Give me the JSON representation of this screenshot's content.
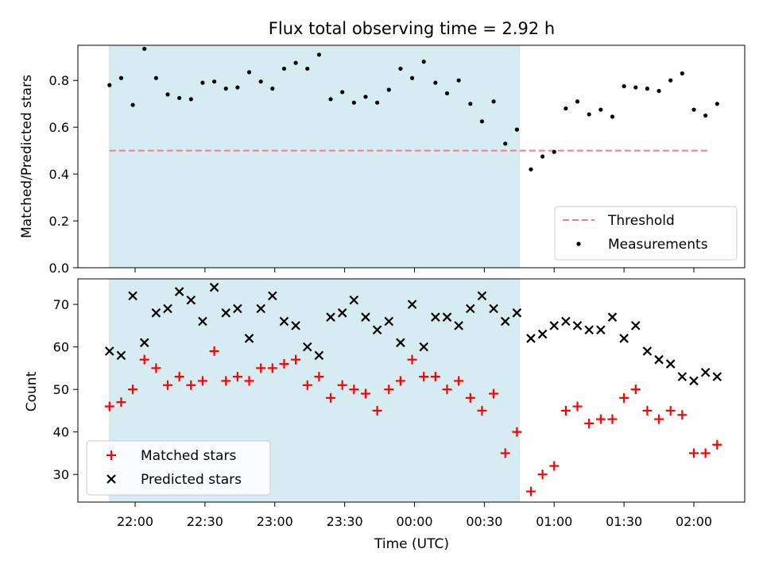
{
  "chart_data": [
    {
      "type": "scatter",
      "title": "Flux total observing time = 2.92 h",
      "ylabel": "Matched/Predicted stars",
      "xlabel": "",
      "ylim": [
        0,
        0.95
      ],
      "yticks": [
        "0.0",
        "0.2",
        "0.4",
        "0.6",
        "0.8"
      ],
      "ytick_values": [
        0,
        0.2,
        0.4,
        0.6,
        0.8
      ],
      "x_ticks": [
        "22:00",
        "22:30",
        "23:00",
        "23:30",
        "00:00",
        "00:30",
        "01:00",
        "01:30",
        "02:00"
      ],
      "shaded_span": {
        "start": "21:49",
        "end": "00:45",
        "color": "#add8e6"
      },
      "threshold": {
        "name": "Threshold",
        "value": 0.5,
        "start": "21:49",
        "end": "02:07",
        "color": "#f08080"
      },
      "legend": {
        "position": "lower-right",
        "entries": [
          "Threshold",
          "Measurements"
        ]
      },
      "series": [
        {
          "name": "Measurements",
          "color": "#000000",
          "marker": "dot",
          "x": [
            "21:49",
            "21:54",
            "21:59",
            "22:04",
            "22:09",
            "22:14",
            "22:19",
            "22:24",
            "22:29",
            "22:34",
            "22:39",
            "22:44",
            "22:49",
            "22:54",
            "22:59",
            "23:04",
            "23:09",
            "23:14",
            "23:19",
            "23:24",
            "23:29",
            "23:34",
            "23:39",
            "23:44",
            "23:49",
            "23:54",
            "23:59",
            "00:04",
            "00:09",
            "00:14",
            "00:19",
            "00:24",
            "00:29",
            "00:34",
            "00:39",
            "00:44",
            "00:50",
            "00:55",
            "01:00",
            "01:05",
            "01:10",
            "01:15",
            "01:20",
            "01:25",
            "01:30",
            "01:35",
            "01:40",
            "01:45",
            "01:50",
            "01:55",
            "02:00",
            "02:05",
            "02:10"
          ],
          "y": [
            0.78,
            0.81,
            0.695,
            0.935,
            0.81,
            0.74,
            0.725,
            0.72,
            0.79,
            0.795,
            0.765,
            0.77,
            0.835,
            0.795,
            0.765,
            0.85,
            0.875,
            0.85,
            0.91,
            0.72,
            0.75,
            0.705,
            0.73,
            0.705,
            0.76,
            0.85,
            0.81,
            0.88,
            0.79,
            0.745,
            0.8,
            0.7,
            0.625,
            0.71,
            0.53,
            0.59,
            0.42,
            0.475,
            0.495,
            0.68,
            0.71,
            0.655,
            0.675,
            0.645,
            0.775,
            0.77,
            0.765,
            0.755,
            0.8,
            0.83,
            0.675,
            0.65,
            0.7
          ]
        }
      ]
    },
    {
      "type": "scatter",
      "title": "",
      "ylabel": "Count",
      "xlabel": "Time (UTC)",
      "ylim": [
        23.5,
        76
      ],
      "yticks": [
        "30",
        "40",
        "50",
        "60",
        "70"
      ],
      "ytick_values": [
        30,
        40,
        50,
        60,
        70
      ],
      "x_ticks": [
        "22:00",
        "22:30",
        "23:00",
        "23:30",
        "00:00",
        "00:30",
        "01:00",
        "01:30",
        "02:00"
      ],
      "shaded_span": {
        "start": "21:49",
        "end": "00:45",
        "color": "#add8e6"
      },
      "legend": {
        "position": "lower-left",
        "entries": [
          "Matched stars",
          "Predicted stars"
        ]
      },
      "series": [
        {
          "name": "Matched stars",
          "color": "#ff0000",
          "marker": "plus",
          "x": [
            "21:49",
            "21:54",
            "21:59",
            "22:04",
            "22:09",
            "22:14",
            "22:19",
            "22:24",
            "22:29",
            "22:34",
            "22:39",
            "22:44",
            "22:49",
            "22:54",
            "22:59",
            "23:04",
            "23:09",
            "23:14",
            "23:19",
            "23:24",
            "23:29",
            "23:34",
            "23:39",
            "23:44",
            "23:49",
            "23:54",
            "23:59",
            "00:04",
            "00:09",
            "00:14",
            "00:19",
            "00:24",
            "00:29",
            "00:34",
            "00:39",
            "00:44",
            "00:50",
            "00:55",
            "01:00",
            "01:05",
            "01:10",
            "01:15",
            "01:20",
            "01:25",
            "01:30",
            "01:35",
            "01:40",
            "01:45",
            "01:50",
            "01:55",
            "02:00",
            "02:05",
            "02:10"
          ],
          "y": [
            46,
            47,
            50,
            57,
            55,
            51,
            53,
            51,
            52,
            59,
            52,
            53,
            52,
            55,
            55,
            56,
            57,
            51,
            53,
            48,
            51,
            50,
            49,
            45,
            50,
            52,
            57,
            53,
            53,
            50,
            52,
            48,
            45,
            49,
            35,
            40,
            26,
            30,
            32,
            45,
            46,
            42,
            43,
            43,
            48,
            50,
            45,
            43,
            45,
            44,
            35,
            35,
            37
          ]
        },
        {
          "name": "Predicted stars",
          "color": "#000000",
          "marker": "x",
          "x": [
            "21:49",
            "21:54",
            "21:59",
            "22:04",
            "22:09",
            "22:14",
            "22:19",
            "22:24",
            "22:29",
            "22:34",
            "22:39",
            "22:44",
            "22:49",
            "22:54",
            "22:59",
            "23:04",
            "23:09",
            "23:14",
            "23:19",
            "23:24",
            "23:29",
            "23:34",
            "23:39",
            "23:44",
            "23:49",
            "23:54",
            "23:59",
            "00:04",
            "00:09",
            "00:14",
            "00:19",
            "00:24",
            "00:29",
            "00:34",
            "00:39",
            "00:44",
            "00:50",
            "00:55",
            "01:00",
            "01:05",
            "01:10",
            "01:15",
            "01:20",
            "01:25",
            "01:30",
            "01:35",
            "01:40",
            "01:45",
            "01:50",
            "01:55",
            "02:00",
            "02:05",
            "02:10"
          ],
          "y": [
            59,
            58,
            72,
            61,
            68,
            69,
            73,
            71,
            66,
            74,
            68,
            69,
            62,
            69,
            72,
            66,
            65,
            60,
            58,
            67,
            68,
            71,
            67,
            64,
            66,
            61,
            70,
            60,
            67,
            67,
            65,
            69,
            72,
            69,
            66,
            68,
            62,
            63,
            65,
            66,
            65,
            64,
            64,
            67,
            62,
            65,
            59,
            57,
            56,
            53,
            52,
            54,
            53
          ]
        }
      ]
    }
  ]
}
